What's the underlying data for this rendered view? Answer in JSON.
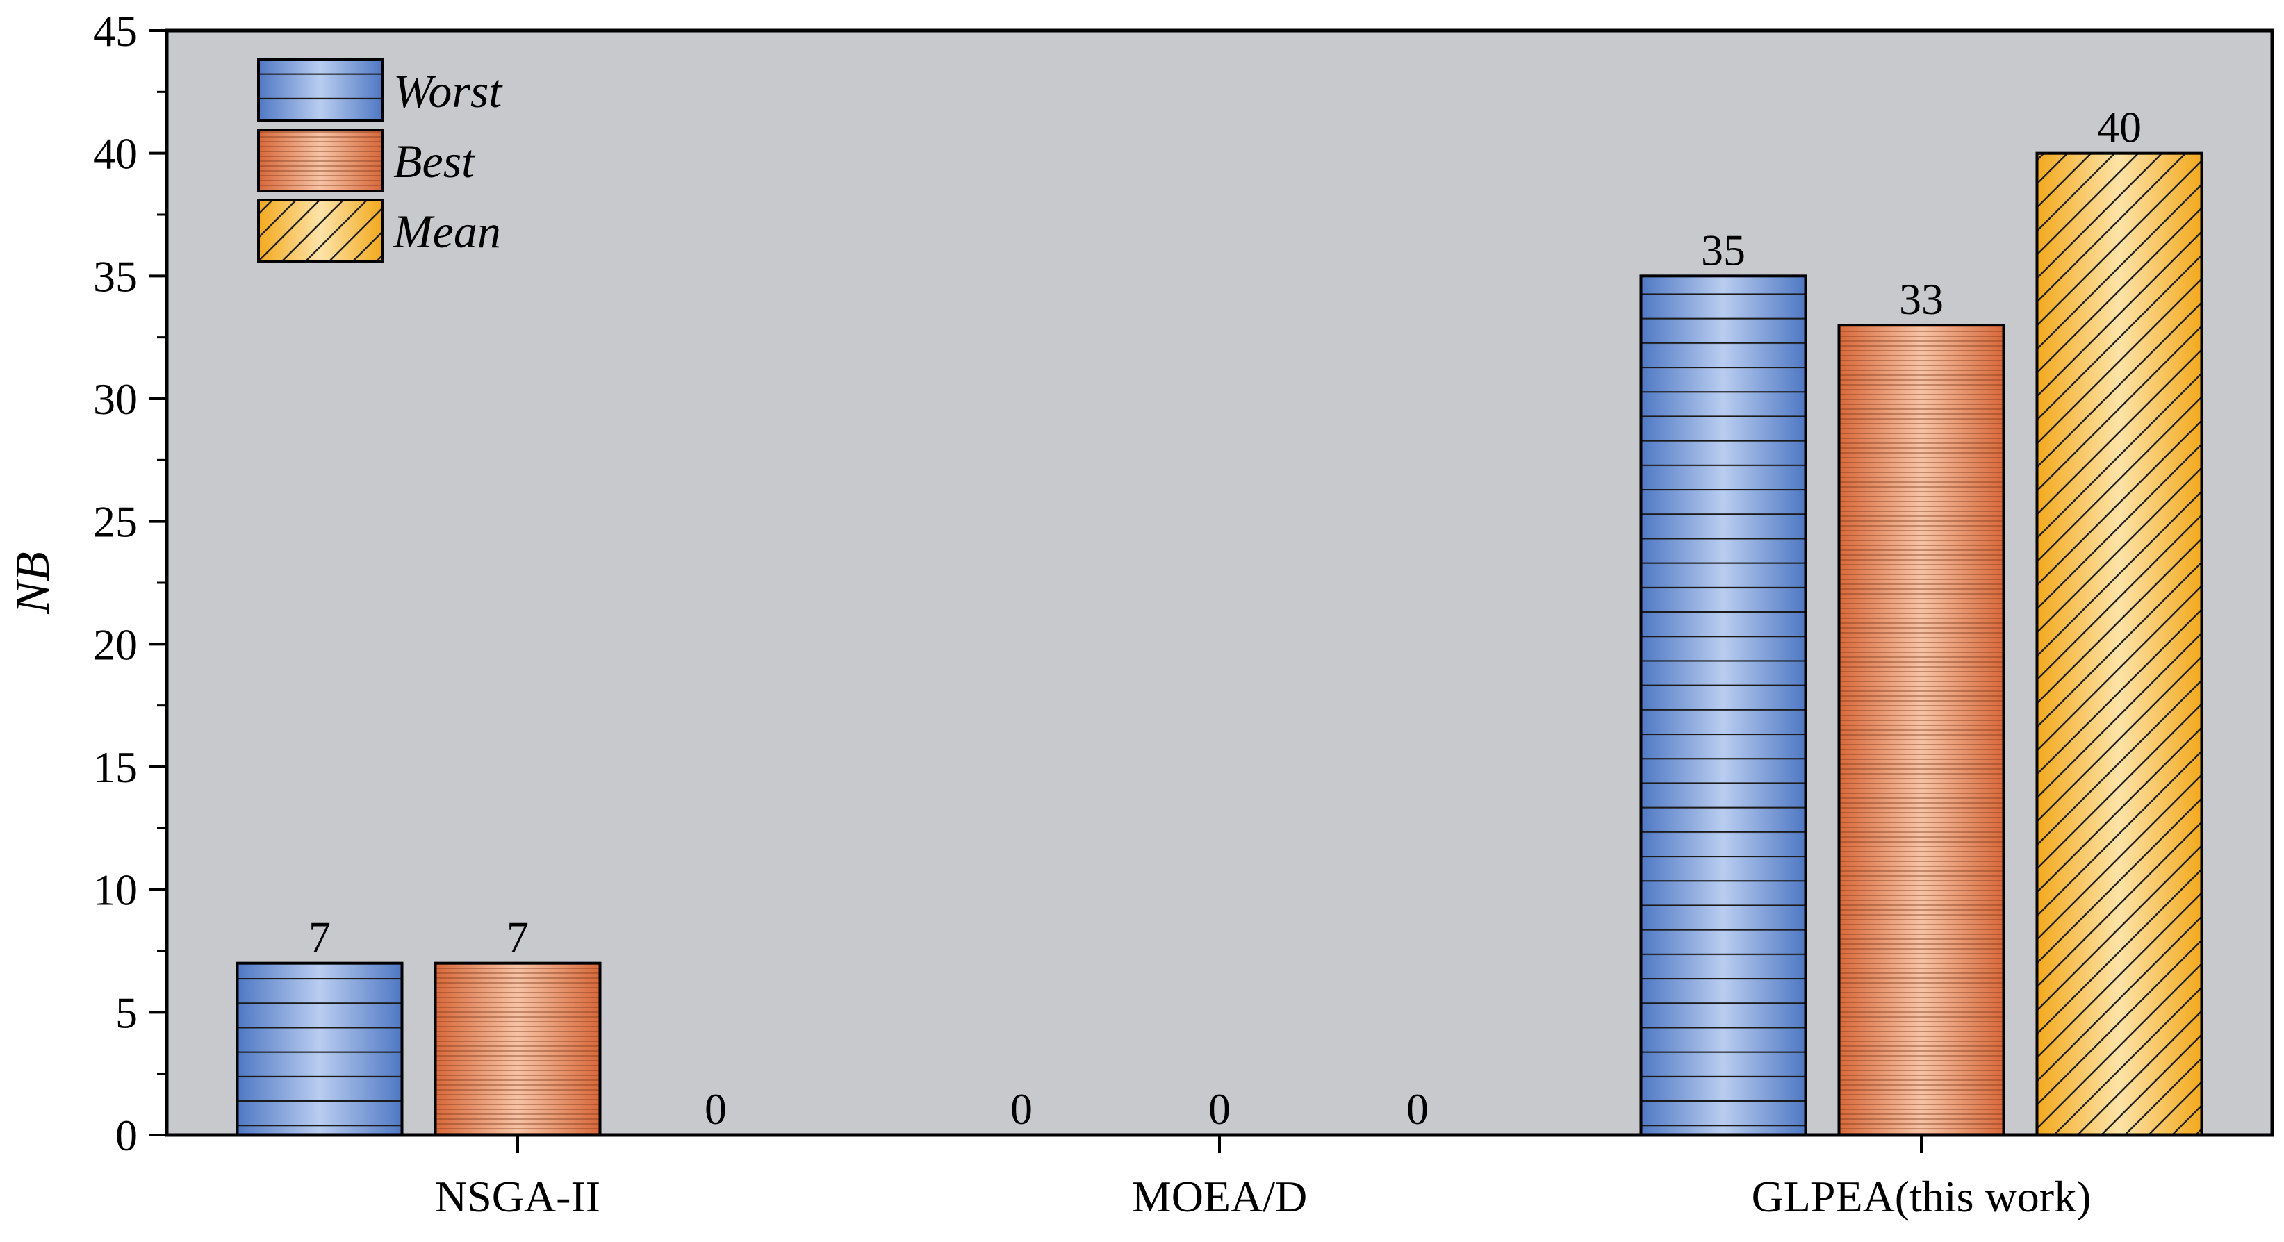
{
  "chart_data": {
    "type": "bar",
    "title": "",
    "xlabel": "",
    "ylabel": "NB",
    "ylim": [
      0,
      45
    ],
    "yticks": [
      0,
      5,
      10,
      15,
      20,
      25,
      30,
      35,
      40,
      45
    ],
    "grid": false,
    "legend_position": "top-left",
    "categories": [
      "NSGA-II",
      "MOEA/D",
      "GLPEA(this work)"
    ],
    "series": [
      {
        "name": "Worst",
        "values": [
          7,
          0,
          35
        ],
        "pattern": "horizontal-lines",
        "color": "#6f96d8"
      },
      {
        "name": "Best",
        "values": [
          7,
          0,
          33
        ],
        "pattern": "fine-horizontal-lines",
        "color": "#e58a5e"
      },
      {
        "name": "Mean",
        "values": [
          0,
          0,
          40
        ],
        "pattern": "diagonal-hatch",
        "color": "#f9c55a"
      }
    ]
  },
  "colors": {
    "plot_background": "#c8c9cd",
    "axis": "#000000",
    "outline": "#000000"
  }
}
